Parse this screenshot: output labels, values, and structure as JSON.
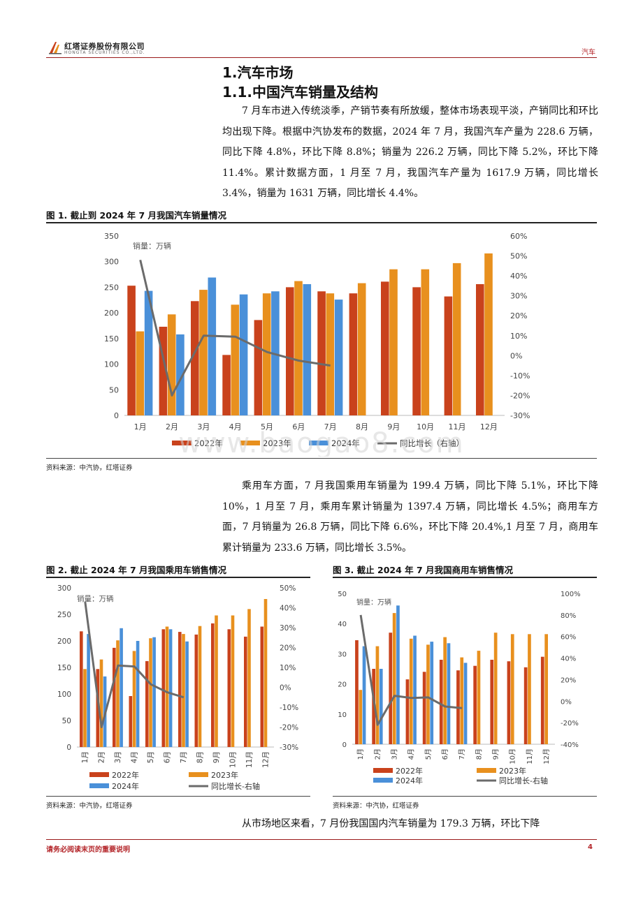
{
  "header": {
    "company_cn": "红塔证券股份有限公司",
    "company_en": "HONGTA SECURITIES CO.,LTD.",
    "sector": "汽车"
  },
  "section": {
    "h1": "1.汽车市场",
    "h2": "1.1.中国汽车销量及结构"
  },
  "paragraphs": {
    "p1": "7 月车市进入传统淡季，产销节奏有所放缓，整体市场表现平淡，产销同比和环比均出现下降。根据中汽协发布的数据，2024 年 7 月，我国汽车产量为 228.6 万辆，同比下降 4.8%，环比下降 8.8%；销量为 226.2 万辆，同比下降 5.2%，环比下降 11.4%。累计数据方面，1 月至 7 月，我国汽车产量为 1617.9 万辆，同比增长 3.4%，销量为 1631 万辆，同比增长 4.4%。",
    "p2": "乘用车方面，7 月我国乘用车销量为 199.4 万辆，同比下降 5.1%，环比下降 10%，1 月至 7 月，乘用车累计销量为 1397.4 万辆，同比增长 4.5%；商用车方面，7 月销量为 26.8 万辆，同比下降 6.6%，环比下降 20.4%,1 月至 7 月，商用车累计销量为 233.6 万辆，同比增长 3.5%。",
    "p3": "从市场地区来看，7 月份我国国内汽车销量为 179.3 万辆，环比下降"
  },
  "figures": {
    "fig1_title": "图 1. 截止到 2024 年 7 月我国汽车销量情况",
    "fig2_title": "图 2. 截止 2024 年 7 月我国乘用车销售情况",
    "fig3_title": "图 3. 截止 2024 年 7 月我国商用车销售情况",
    "source": "资料来源：中汽协，红塔证券",
    "watermark": "www.baogao8.com"
  },
  "footer": {
    "note": "请务必阅读末页的重要说明",
    "page": "4"
  },
  "colors": {
    "y2022": "#c9421c",
    "y2023": "#e8901e",
    "y2024": "#4a90d9",
    "yoy": "#6b6b6b",
    "brand_red": "#b4262a"
  },
  "chart_data": [
    {
      "type": "bar",
      "subtype": "bar+line dual axis",
      "unit_label": "销量：万辆",
      "categories": [
        "1月",
        "2月",
        "3月",
        "4月",
        "5月",
        "6月",
        "7月",
        "8月",
        "9月",
        "10月",
        "11月",
        "12月"
      ],
      "series": [
        {
          "name": "2022年",
          "values": [
            253,
            173,
            223,
            118,
            186,
            250,
            242,
            238,
            261,
            250,
            232,
            256
          ]
        },
        {
          "name": "2023年",
          "values": [
            164,
            197,
            245,
            216,
            238,
            262,
            238,
            258,
            285,
            285,
            297,
            316
          ]
        },
        {
          "name": "2024年",
          "values": [
            243,
            158,
            269,
            236,
            242,
            256,
            226,
            null,
            null,
            null,
            null,
            null
          ]
        },
        {
          "name": "同比增长（右轴）",
          "axis": "right",
          "values": [
            48,
            -20,
            10,
            9.5,
            1.8,
            -2.5,
            -5,
            null,
            null,
            null,
            null,
            null
          ]
        }
      ],
      "ylim": [
        0,
        350
      ],
      "yticks": [
        0,
        50,
        100,
        150,
        200,
        250,
        300,
        350
      ],
      "y2lim": [
        -30,
        60
      ],
      "y2ticks": [
        "60%",
        "50%",
        "40%",
        "30%",
        "20%",
        "10%",
        "0%",
        "-10%",
        "-20%",
        "-30%"
      ],
      "legend": "bottom"
    },
    {
      "type": "bar",
      "subtype": "bar+line dual axis",
      "unit_label": "销量：万辆",
      "categories": [
        "1月",
        "2月",
        "3月",
        "4月",
        "5月",
        "6月",
        "7月",
        "8月",
        "9月",
        "10月",
        "11月",
        "12月"
      ],
      "series": [
        {
          "name": "2022年",
          "values": [
            218,
            147,
            187,
            96,
            162,
            222,
            217,
            212,
            233,
            222,
            208,
            227
          ]
        },
        {
          "name": "2023年",
          "values": [
            147,
            165,
            201,
            181,
            205,
            227,
            213,
            228,
            248,
            248,
            260,
            279
          ]
        },
        {
          "name": "2024年",
          "values": [
            213,
            133,
            224,
            200,
            207,
            222,
            199,
            null,
            null,
            null,
            null,
            null
          ]
        },
        {
          "name": "同比增长-右轴",
          "axis": "right",
          "values": [
            43,
            -20,
            11,
            10.5,
            1.5,
            -2.5,
            -5,
            null,
            null,
            null,
            null,
            null
          ]
        }
      ],
      "ylim": [
        0,
        300
      ],
      "yticks": [
        0,
        50,
        100,
        150,
        200,
        250,
        300
      ],
      "y2lim": [
        -30,
        50
      ],
      "y2ticks": [
        "50%",
        "40%",
        "30%",
        "20%",
        "10%",
        "0%",
        "-10%",
        "-20%",
        "-30%"
      ],
      "legend": "bottom"
    },
    {
      "type": "bar",
      "subtype": "bar+line dual axis",
      "unit_label": "销量：万辆",
      "categories": [
        "1月",
        "2月",
        "3月",
        "4月",
        "5月",
        "6月",
        "7月",
        "8月",
        "9月",
        "10月",
        "11月",
        "12月"
      ],
      "series": [
        {
          "name": "2022年",
          "values": [
            34.5,
            25,
            37,
            21.5,
            24,
            28,
            24.5,
            26,
            28,
            27.5,
            25.5,
            29
          ]
        },
        {
          "name": "2023年",
          "values": [
            18,
            32.5,
            43.5,
            35,
            33,
            35.5,
            28.8,
            31,
            37,
            36.5,
            36.5,
            36.5
          ]
        },
        {
          "name": "2024年",
          "values": [
            32.5,
            25,
            46,
            36,
            34,
            33.5,
            27,
            null,
            null,
            null,
            null,
            null
          ]
        },
        {
          "name": "同比增长-右轴",
          "axis": "right",
          "values": [
            80,
            -22,
            5,
            3,
            3.5,
            -5,
            -6.5,
            null,
            null,
            null,
            null,
            null
          ]
        }
      ],
      "ylim": [
        0,
        50
      ],
      "yticks": [
        0,
        10,
        20,
        30,
        40,
        50
      ],
      "y2lim": [
        -40,
        100
      ],
      "y2ticks": [
        "100%",
        "80%",
        "60%",
        "40%",
        "20%",
        "0%",
        "-20%",
        "-40%"
      ],
      "legend": "bottom"
    }
  ]
}
